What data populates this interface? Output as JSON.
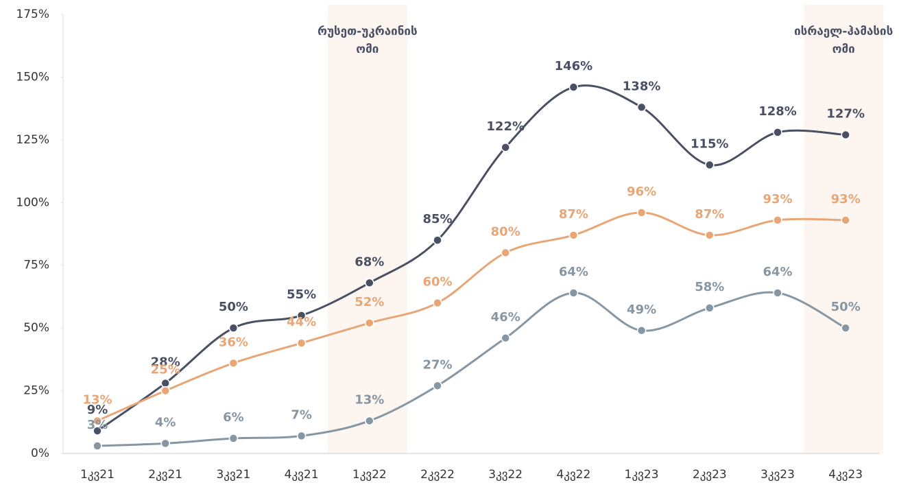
{
  "chart_data": {
    "type": "line",
    "categories": [
      "1კვ21",
      "2კვ21",
      "3კვ21",
      "4კვ21",
      "1კვ22",
      "2კვ22",
      "3კვ22",
      "4კვ22",
      "1კვ23",
      "2კვ23",
      "3კვ23",
      "4კვ23"
    ],
    "series": [
      {
        "color": "#4a5063",
        "values": [
          9,
          28,
          50,
          55,
          68,
          85,
          122,
          146,
          138,
          115,
          128,
          127
        ],
        "value_labels": [
          "9%",
          "28%",
          "50%",
          "55%",
          "68%",
          "85%",
          "122%",
          "146%",
          "138%",
          "115%",
          "128%",
          "127%"
        ]
      },
      {
        "color": "#e8a676",
        "values": [
          13,
          25,
          36,
          44,
          52,
          60,
          80,
          87,
          96,
          87,
          93,
          93
        ],
        "value_labels": [
          "13%",
          "25%",
          "36%",
          "44%",
          "52%",
          "60%",
          "80%",
          "87%",
          "96%",
          "87%",
          "93%",
          "93%"
        ]
      },
      {
        "color": "#8696a3",
        "values": [
          3,
          4,
          6,
          7,
          13,
          27,
          46,
          64,
          49,
          58,
          64,
          50
        ],
        "value_labels": [
          "3%",
          "4%",
          "6%",
          "7%",
          "13%",
          "27%",
          "46%",
          "64%",
          "49%",
          "58%",
          "64%",
          "50%"
        ]
      }
    ],
    "ylim": [
      0,
      175
    ],
    "yticks": [
      {
        "value": 0,
        "label": "0%"
      },
      {
        "value": 25,
        "label": "25%"
      },
      {
        "value": 50,
        "label": "50%"
      },
      {
        "value": 75,
        "label": "75%"
      },
      {
        "value": 100,
        "label": "100%"
      },
      {
        "value": 125,
        "label": "125%"
      },
      {
        "value": 150,
        "label": "150%"
      },
      {
        "value": 175,
        "label": "175%"
      }
    ],
    "annotations": [
      {
        "text": "რუსეთ-უკრაინის ომი",
        "x": "1კვ22"
      },
      {
        "text": "ისრაელ-ჰამასის ომი",
        "x": "4კვ23"
      }
    ]
  }
}
